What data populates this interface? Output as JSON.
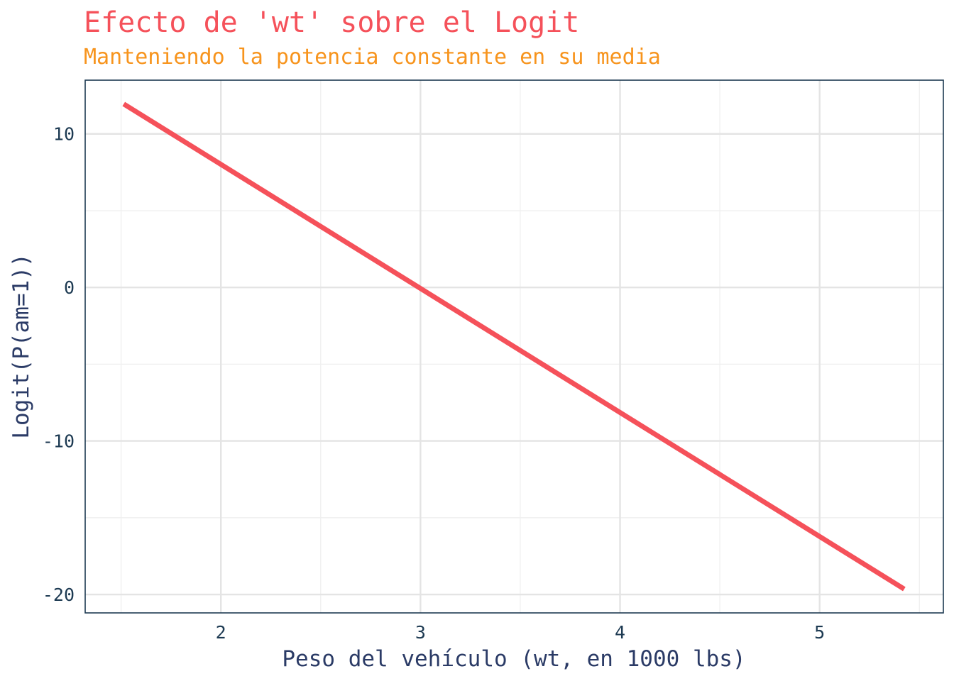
{
  "colors": {
    "title": "#f5515a",
    "subtitle": "#f7941d",
    "line": "#f5515a",
    "tick_label": "#1d3a52",
    "axis_title": "#2b3b66",
    "panel_border": "#1d3a52",
    "grid_major": "#e4e4e4",
    "grid_minor": "#efefef",
    "background": "#ffffff"
  },
  "chart_data": {
    "type": "line",
    "title": "Efecto de 'wt' sobre el Logit",
    "subtitle": "Manteniendo la potencia constante en su media",
    "xlabel": "Peso del vehículo (wt, en 1000 lbs)",
    "ylabel": "Logit(P(am=1))",
    "xlim": [
      1.32,
      5.62
    ],
    "ylim": [
      -21.2,
      13.5
    ],
    "x_ticks": [
      2,
      3,
      4,
      5
    ],
    "x_tick_labels": [
      "2",
      "3",
      "4",
      "5"
    ],
    "x_minor_ticks": [
      1.5,
      2.5,
      3.5,
      4.5,
      5.5
    ],
    "y_ticks": [
      -20,
      -10,
      0,
      10
    ],
    "y_tick_labels": [
      "-20",
      "-10",
      "0",
      "10"
    ],
    "y_minor_ticks": [
      -15,
      -5,
      5
    ],
    "grid": true,
    "legend": "none",
    "series": [
      {
        "x": [
          1.513,
          5.424
        ],
        "y": [
          11.95,
          -19.65
        ]
      }
    ]
  }
}
